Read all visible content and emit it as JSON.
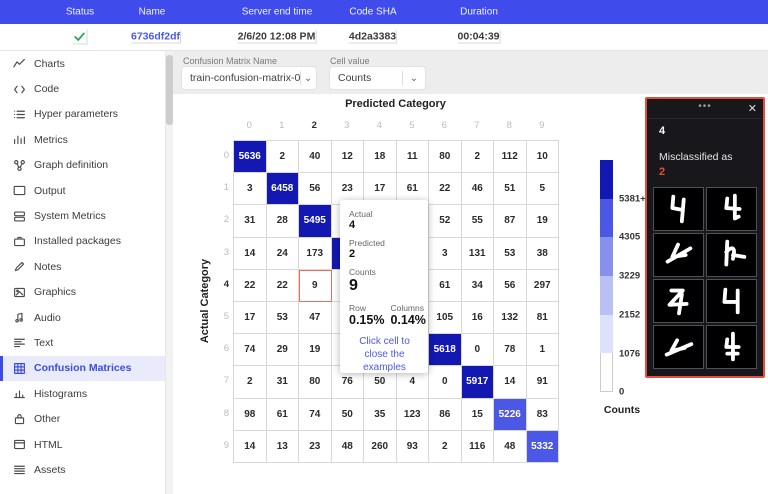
{
  "header": {
    "columns": [
      "Status",
      "Name",
      "Server end time",
      "Code SHA",
      "Duration"
    ],
    "row": {
      "status_icon": "check",
      "name": "6736df2df",
      "server_end_time": "2/6/20 12:08 PM",
      "code_sha": "4d2a3383",
      "duration": "00:04:39"
    }
  },
  "sidebar": {
    "items": [
      {
        "label": "Charts",
        "icon": "charts",
        "active": false
      },
      {
        "label": "Code",
        "icon": "code",
        "active": false
      },
      {
        "label": "Hyper parameters",
        "icon": "hyper-parameters",
        "active": false
      },
      {
        "label": "Metrics",
        "icon": "metrics",
        "active": false
      },
      {
        "label": "Graph definition",
        "icon": "graph-definition",
        "active": false
      },
      {
        "label": "Output",
        "icon": "output",
        "active": false
      },
      {
        "label": "System Metrics",
        "icon": "system-metrics",
        "active": false
      },
      {
        "label": "Installed packages",
        "icon": "installed-packages",
        "active": false
      },
      {
        "label": "Notes",
        "icon": "notes",
        "active": false
      },
      {
        "label": "Graphics",
        "icon": "graphics",
        "active": false
      },
      {
        "label": "Audio",
        "icon": "audio",
        "active": false
      },
      {
        "label": "Text",
        "icon": "text",
        "active": false
      },
      {
        "label": "Confusion Matrices",
        "icon": "confusion-matrices",
        "active": true
      },
      {
        "label": "Histograms",
        "icon": "histograms",
        "active": false
      },
      {
        "label": "Other",
        "icon": "other",
        "active": false
      },
      {
        "label": "HTML",
        "icon": "html",
        "active": false
      },
      {
        "label": "Assets",
        "icon": "assets",
        "active": false
      }
    ]
  },
  "controls": {
    "matrix_name_label": "Confusion Matrix Name",
    "matrix_name_value": "train-confusion-matrix-002.json",
    "cell_value_label": "Cell value",
    "cell_value_value": "Counts"
  },
  "matrix": {
    "x_title": "Predicted Category",
    "y_title": "Actual Category",
    "col_headers": [
      "0",
      "1",
      "2",
      "3",
      "4",
      "5",
      "6",
      "7",
      "8",
      "9"
    ],
    "row_headers": [
      "0",
      "1",
      "2",
      "3",
      "4",
      "5",
      "6",
      "7",
      "8",
      "9"
    ],
    "selected_cell": {
      "row": 4,
      "col": 2
    },
    "selected_col_header": 2,
    "selected_row_header": 4,
    "rows": [
      [
        5636,
        2,
        40,
        12,
        18,
        11,
        80,
        2,
        112,
        10
      ],
      [
        3,
        6458,
        56,
        23,
        17,
        61,
        22,
        46,
        51,
        5
      ],
      [
        31,
        28,
        5495,
        null,
        null,
        null,
        52,
        55,
        87,
        19
      ],
      [
        14,
        24,
        173,
        null,
        null,
        null,
        3,
        131,
        53,
        38
      ],
      [
        22,
        22,
        9,
        null,
        null,
        null,
        61,
        34,
        56,
        297
      ],
      [
        17,
        53,
        47,
        null,
        null,
        null,
        105,
        16,
        132,
        81
      ],
      [
        74,
        29,
        19,
        null,
        null,
        null,
        5618,
        0,
        78,
        1
      ],
      [
        2,
        31,
        80,
        76,
        50,
        4,
        0,
        5917,
        14,
        91
      ],
      [
        98,
        61,
        74,
        50,
        35,
        123,
        86,
        15,
        5226,
        83
      ],
      [
        14,
        13,
        23,
        48,
        260,
        93,
        2,
        116,
        48,
        5332
      ]
    ]
  },
  "tooltip": {
    "actual_label": "Actual",
    "actual_value": "4",
    "predicted_label": "Predicted",
    "predicted_value": "2",
    "counts_label": "Counts",
    "counts_value": "9",
    "row_label": "Row",
    "row_pct": "0.15%",
    "columns_label": "Columns",
    "columns_pct": "0.14%",
    "link": "Click cell to close the examples"
  },
  "legend": {
    "labels": [
      "5381+",
      "4305",
      "3229",
      "2152",
      "1076",
      "0"
    ],
    "colors": [
      "#1318b2",
      "#4b57e5",
      "#8691ec",
      "#b8c0f4",
      "#dde1fa",
      "#ffffff"
    ],
    "title": "Counts"
  },
  "examples_panel": {
    "digit": "4",
    "misclassified_label": "Misclassified as",
    "misclassified_as": "2",
    "image_count": 8
  },
  "colors": {
    "topbar": "#3f4ceb",
    "accent_blue": "#4a5ae8",
    "diag_dark": "#1318b2",
    "diag_mid": "#4b57e5",
    "selected_cell_border": "#ef6a5a",
    "panel_red": "#e84c3d",
    "check_green": "#26a65b"
  }
}
